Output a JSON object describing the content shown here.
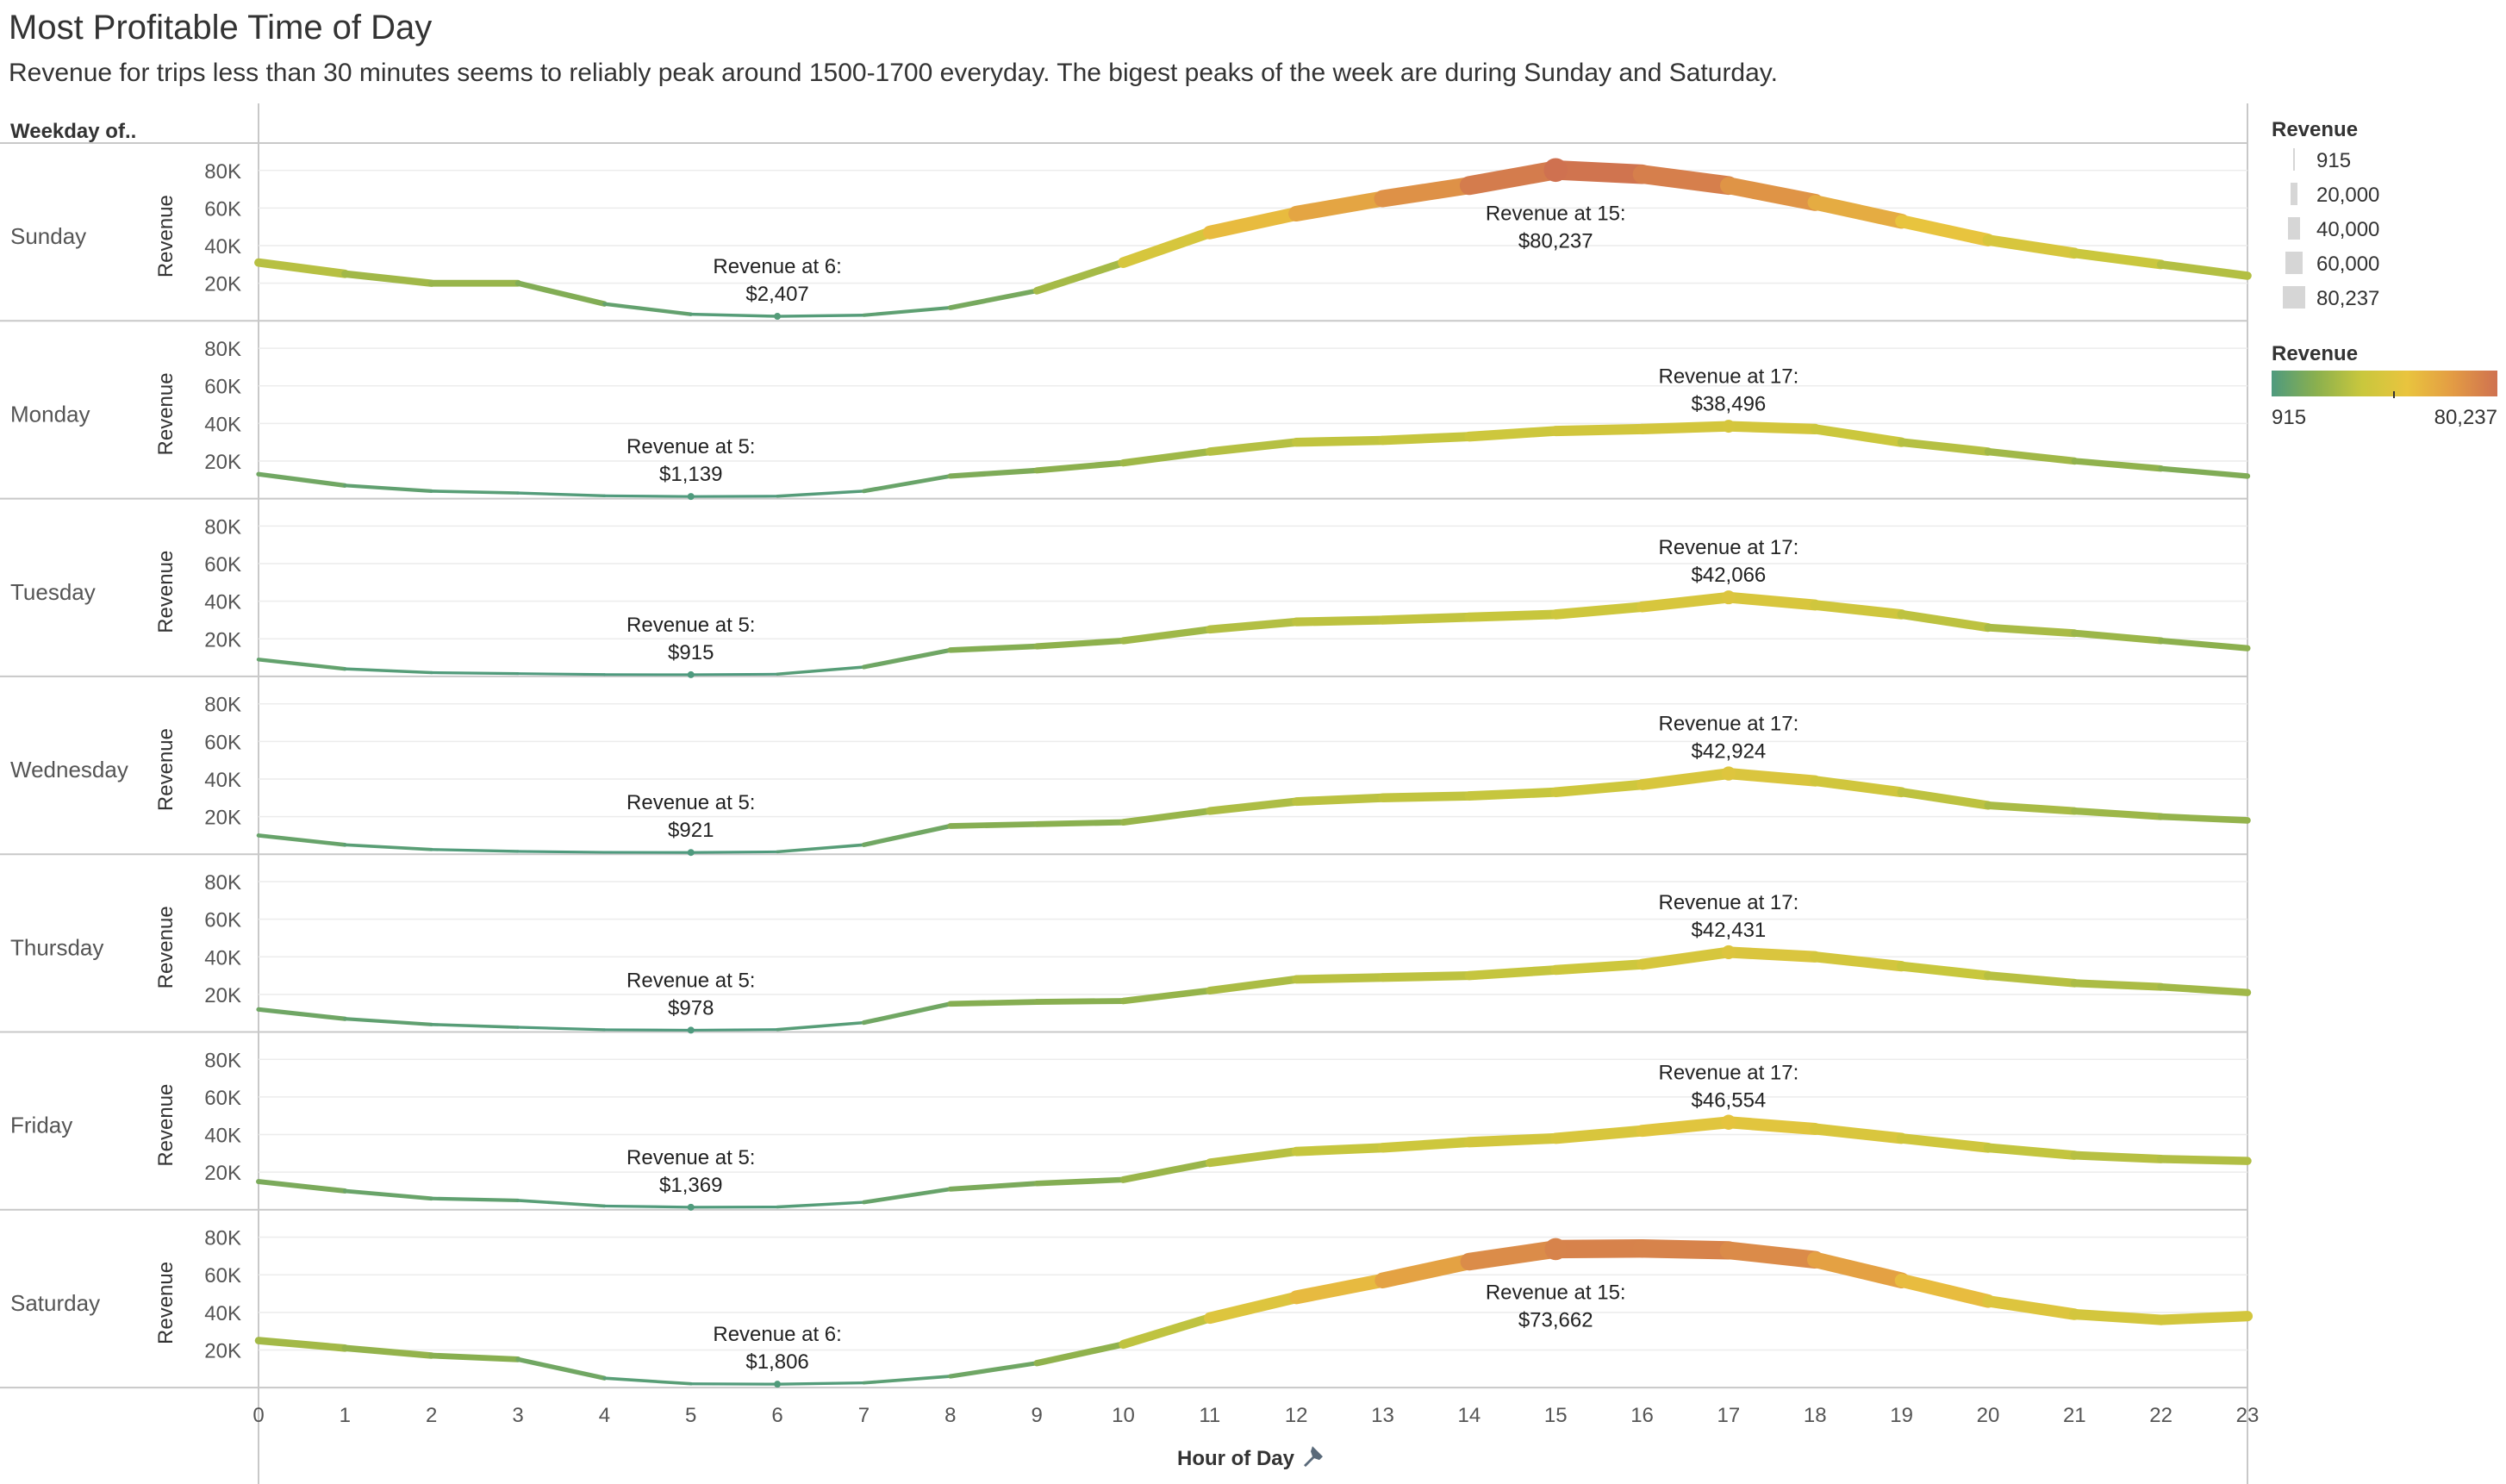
{
  "title": "Most Profitable Time of Day",
  "subtitle": "Revenue for trips less than 30 minutes seems to reliably peak around 1500-1700 everyday. The bigest peaks of the week are during Sunday and Saturday.",
  "chart_data": {
    "type": "line",
    "row_header": "Weekday of..",
    "xlabel": "Hour of Day",
    "xlabel_icon": "pin-icon",
    "ylabel": "Revenue",
    "x": [
      0,
      1,
      2,
      3,
      4,
      5,
      6,
      7,
      8,
      9,
      10,
      11,
      12,
      13,
      14,
      15,
      16,
      17,
      18,
      19,
      20,
      21,
      22,
      23
    ],
    "xlim": [
      0,
      23
    ],
    "ylim": [
      0,
      90000
    ],
    "yticks": [
      20000,
      40000,
      60000,
      80000
    ],
    "ytick_labels": [
      "20K",
      "40K",
      "60K",
      "80K"
    ],
    "grid": true,
    "line_width_encodes": "Revenue",
    "color_encodes": "Revenue",
    "series": [
      {
        "name": "Sunday",
        "values": [
          31000,
          25000,
          20000,
          20000,
          9000,
          3500,
          2407,
          3000,
          7000,
          16000,
          31000,
          47000,
          57000,
          65000,
          72000,
          80237,
          78000,
          72000,
          63000,
          53000,
          43000,
          36000,
          30000,
          24000
        ],
        "annotation": {
          "x": 6,
          "line1": "Revenue at 6:",
          "line2": "$2,407",
          "pos": "above"
        },
        "peak": {
          "x": 15,
          "line1": "Revenue at 15:",
          "line2": "$80,237",
          "pos": "below"
        }
      },
      {
        "name": "Monday",
        "values": [
          13000,
          7000,
          4000,
          3000,
          1500,
          1139,
          1300,
          4000,
          12000,
          15000,
          19000,
          25000,
          30000,
          31000,
          33000,
          36000,
          37000,
          38496,
          37000,
          30000,
          25000,
          20000,
          16000,
          12000
        ],
        "annotation": {
          "x": 5,
          "line1": "Revenue at 5:",
          "line2": "$1,139",
          "pos": "above"
        },
        "peak": {
          "x": 17,
          "line1": "Revenue at 17:",
          "line2": "$38,496",
          "pos": "above"
        }
      },
      {
        "name": "Tuesday",
        "values": [
          9000,
          4000,
          2000,
          1500,
          1000,
          915,
          1200,
          5000,
          14000,
          16000,
          19000,
          25000,
          29000,
          30000,
          31500,
          33000,
          37000,
          42066,
          38000,
          33000,
          26000,
          23000,
          19000,
          15000
        ],
        "annotation": {
          "x": 5,
          "line1": "Revenue at 5:",
          "line2": "$915",
          "pos": "above"
        },
        "peak": {
          "x": 17,
          "line1": "Revenue at 17:",
          "line2": "$42,066",
          "pos": "above"
        }
      },
      {
        "name": "Wednesday",
        "values": [
          10000,
          5000,
          2500,
          1500,
          1000,
          921,
          1300,
          5000,
          15000,
          16000,
          17000,
          23000,
          28000,
          30000,
          31000,
          33000,
          37000,
          42924,
          39000,
          33000,
          26000,
          23000,
          20000,
          18000
        ],
        "annotation": {
          "x": 5,
          "line1": "Revenue at 5:",
          "line2": "$921",
          "pos": "above"
        },
        "peak": {
          "x": 17,
          "line1": "Revenue at 17:",
          "line2": "$42,924",
          "pos": "above"
        }
      },
      {
        "name": "Thursday",
        "values": [
          12000,
          7000,
          4000,
          2500,
          1200,
          978,
          1300,
          5000,
          15000,
          16000,
          16500,
          22000,
          28000,
          29000,
          30000,
          33000,
          36000,
          42431,
          40000,
          35000,
          30000,
          26000,
          24000,
          21000
        ],
        "annotation": {
          "x": 5,
          "line1": "Revenue at 5:",
          "line2": "$978",
          "pos": "above"
        },
        "peak": {
          "x": 17,
          "line1": "Revenue at 17:",
          "line2": "$42,431",
          "pos": "above"
        }
      },
      {
        "name": "Friday",
        "values": [
          15000,
          10000,
          6000,
          5000,
          2000,
          1369,
          1500,
          4000,
          11000,
          14000,
          16000,
          25000,
          31000,
          33000,
          36000,
          38000,
          42000,
          46554,
          43000,
          38000,
          33000,
          29000,
          27000,
          26000
        ],
        "annotation": {
          "x": 5,
          "line1": "Revenue at 5:",
          "line2": "$1,369",
          "pos": "above"
        },
        "peak": {
          "x": 17,
          "line1": "Revenue at 17:",
          "line2": "$46,554",
          "pos": "above"
        }
      },
      {
        "name": "Saturday",
        "values": [
          25000,
          21000,
          17000,
          15000,
          5000,
          2000,
          1806,
          2500,
          6000,
          13000,
          23000,
          37000,
          48000,
          57000,
          67000,
          73662,
          74000,
          73000,
          68000,
          57000,
          46000,
          39000,
          36000,
          38000
        ],
        "annotation": {
          "x": 6,
          "line1": "Revenue at 6:",
          "line2": "$1,806",
          "pos": "above"
        },
        "peak": {
          "x": 15,
          "line1": "Revenue at 15:",
          "line2": "$73,662",
          "pos": "below"
        }
      }
    ],
    "size_legend": {
      "title": "Revenue",
      "values": [
        "915",
        "20,000",
        "40,000",
        "60,000",
        "80,237"
      ]
    },
    "color_legend": {
      "title": "Revenue",
      "min_label": "915",
      "max_label": "80,237",
      "colors": [
        "#4e9a7e",
        "#8bb04e",
        "#c9c73d",
        "#e9c43e",
        "#e39c44",
        "#cf7150"
      ]
    }
  }
}
